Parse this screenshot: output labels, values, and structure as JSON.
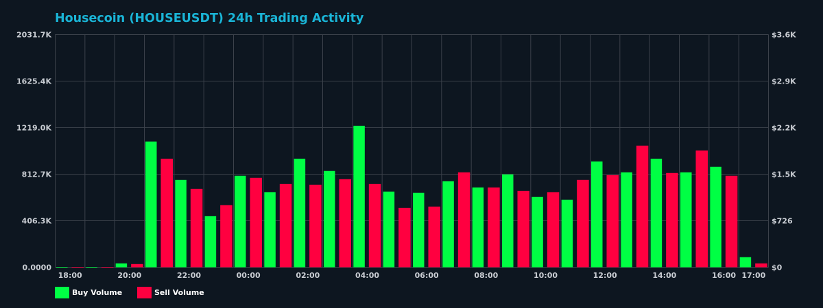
{
  "chart_data": {
    "type": "bar",
    "title": "Housecoin (HOUSEUSDT) 24h Trading Activity",
    "categories": [
      "18:00",
      "19:00",
      "20:00",
      "21:00",
      "22:00",
      "23:00",
      "00:00",
      "01:00",
      "02:00",
      "03:00",
      "04:00",
      "05:00",
      "06:00",
      "07:00",
      "08:00",
      "09:00",
      "10:00",
      "11:00",
      "12:00",
      "13:00",
      "14:00",
      "15:00",
      "16:00",
      "17:00"
    ],
    "x_tick_labels": [
      "18:00",
      "20:00",
      "22:00",
      "00:00",
      "02:00",
      "04:00",
      "06:00",
      "08:00",
      "10:00",
      "12:00",
      "14:00",
      "16:00",
      "17:00"
    ],
    "x_tick_categories": [
      "18:00",
      "20:00",
      "22:00",
      "00:00",
      "02:00",
      "04:00",
      "06:00",
      "08:00",
      "10:00",
      "12:00",
      "14:00",
      "16:00",
      "17:00"
    ],
    "series": [
      {
        "name": "Buy Volume",
        "color": "#00ff44",
        "unit": "K",
        "values": [
          3,
          3,
          34,
          1098,
          763,
          446,
          799,
          655,
          948,
          841,
          1235,
          661,
          650,
          751,
          697,
          811,
          614,
          590,
          924,
          829,
          948,
          829,
          877,
          88
        ]
      },
      {
        "name": "Sell Volume",
        "color": "#ff0040",
        "unit": "K",
        "values": [
          3,
          2,
          28,
          948,
          685,
          542,
          781,
          727,
          721,
          769,
          727,
          518,
          530,
          829,
          697,
          667,
          655,
          763,
          805,
          1062,
          823,
          1020,
          799,
          34
        ]
      }
    ],
    "y_left": {
      "ylim": [
        0,
        2031.7
      ],
      "tick_values": [
        0,
        406.3,
        812.7,
        1219.0,
        1625.4,
        2031.7
      ],
      "tick_labels": [
        "0.0000",
        "406.3K",
        "812.7K",
        "1219.0K",
        "1625.4K",
        "2031.7K"
      ]
    },
    "y_right": {
      "ylim": [
        0,
        3630
      ],
      "tick_labels": [
        "$0",
        "$726",
        "$1.5K",
        "$2.2K",
        "$2.9K",
        "$3.6K"
      ]
    },
    "grid": true,
    "legend_placement": "bottom-left",
    "colors": {
      "background": "#0d1620",
      "grid": "#3b414a",
      "title": "#1ab4d6",
      "tick": "#c8ccd2"
    }
  }
}
